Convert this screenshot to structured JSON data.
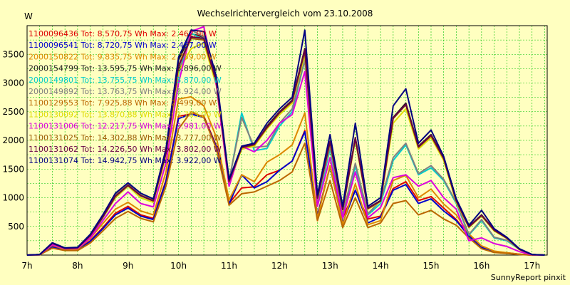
{
  "chart_data": {
    "type": "line",
    "title": "Wechselrichtervergleich vom 23.10.2008",
    "y_unit_label": "W",
    "xlabel": "",
    "ylabel": "",
    "x_ticks": [
      "7h",
      "8h",
      "9h",
      "10h",
      "11h",
      "12h",
      "13h",
      "14h",
      "15h",
      "16h",
      "17h"
    ],
    "y_ticks": [
      500,
      1000,
      1500,
      2000,
      2500,
      3000,
      3500
    ],
    "xlim": [
      7.0,
      17.3
    ],
    "ylim": [
      0,
      4000
    ],
    "grid": true,
    "legend_position": "top-left",
    "footer": "SunnyReport pinxit",
    "x": [
      7.0,
      7.25,
      7.5,
      7.75,
      8.0,
      8.25,
      8.5,
      8.75,
      9.0,
      9.25,
      9.5,
      9.75,
      10.0,
      10.25,
      10.5,
      10.75,
      11.0,
      11.25,
      11.5,
      11.75,
      12.0,
      12.25,
      12.5,
      12.75,
      13.0,
      13.25,
      13.5,
      13.75,
      14.0,
      14.25,
      14.5,
      14.75,
      15.0,
      15.25,
      15.5,
      15.75,
      16.0,
      16.25,
      16.5,
      16.75,
      17.0,
      17.25
    ],
    "series": [
      {
        "name": "1100096436 Tot: 8.570,75 Wh Max: 2.462,00 W",
        "color": "#dd0000",
        "values": [
          0,
          5,
          150,
          90,
          90,
          250,
          480,
          730,
          850,
          700,
          640,
          1300,
          2420,
          2460,
          2420,
          1900,
          900,
          1170,
          1190,
          1400,
          1480,
          1640,
          2170,
          690,
          1550,
          650,
          1130,
          630,
          680,
          1160,
          1280,
          950,
          1020,
          820,
          620,
          340,
          140,
          60,
          40,
          15,
          0,
          0
        ]
      },
      {
        "name": "1100096541 Tot: 8.720,75 Wh Max: 2.457,00 W",
        "color": "#0000cc",
        "values": [
          0,
          5,
          140,
          85,
          85,
          240,
          460,
          700,
          820,
          680,
          620,
          1280,
          2380,
          2457,
          2400,
          1880,
          890,
          1400,
          1170,
          1280,
          1480,
          1640,
          2150,
          680,
          1540,
          560,
          1130,
          560,
          660,
          1130,
          1230,
          900,
          980,
          770,
          600,
          330,
          130,
          55,
          35,
          15,
          0,
          0
        ]
      },
      {
        "name": "2000150822 Tot: 9.835,75 Wh Max: 2.759,00 W",
        "color": "#dd8800",
        "values": [
          0,
          8,
          170,
          100,
          100,
          290,
          550,
          800,
          920,
          770,
          700,
          1450,
          2720,
          2759,
          2600,
          2050,
          960,
          1400,
          1280,
          1620,
          1750,
          1920,
          2480,
          640,
          1560,
          530,
          1240,
          530,
          600,
          1300,
          1390,
          1000,
          1150,
          890,
          700,
          370,
          160,
          70,
          40,
          15,
          0,
          0
        ]
      },
      {
        "name": "2000154799 Tot: 13.595,75 Wh Max: 3.896,00 W",
        "color": "#202020",
        "values": [
          0,
          10,
          210,
          120,
          130,
          350,
          680,
          1050,
          1230,
          1050,
          950,
          1800,
          3400,
          3860,
          3800,
          3050,
          1300,
          1850,
          1900,
          2250,
          2500,
          2700,
          3600,
          1000,
          1980,
          800,
          2050,
          820,
          950,
          2400,
          2650,
          1900,
          2100,
          1700,
          950,
          500,
          700,
          440,
          300,
          100,
          10,
          0
        ]
      },
      {
        "name": "2000149801 Tot: 13.755,75 Wh Max: 3.870,00 W",
        "color": "#00cccc",
        "values": [
          0,
          10,
          200,
          120,
          130,
          330,
          650,
          1000,
          1200,
          1000,
          920,
          1750,
          3150,
          3870,
          3750,
          3000,
          1280,
          2480,
          1820,
          1860,
          2250,
          2500,
          3400,
          900,
          1850,
          700,
          1550,
          700,
          900,
          1650,
          1920,
          1400,
          1520,
          1300,
          900,
          350,
          600,
          300,
          250,
          100,
          10,
          0
        ]
      },
      {
        "name": "2000149892 Tot: 13.763,75 Wh Max: 3.924,00 W",
        "color": "#808080",
        "values": [
          0,
          10,
          210,
          120,
          130,
          340,
          670,
          1040,
          1250,
          1050,
          960,
          1800,
          3200,
          3924,
          3800,
          3050,
          1300,
          2400,
          1880,
          1900,
          2300,
          2550,
          3400,
          950,
          1900,
          720,
          1600,
          720,
          950,
          1700,
          1950,
          1420,
          1560,
          1320,
          920,
          360,
          620,
          310,
          260,
          110,
          10,
          0
        ]
      },
      {
        "name": "1100129553 Tot: 7.925,88 Wh Max: 2.499,00 W",
        "color": "#bb6600",
        "values": [
          0,
          5,
          120,
          80,
          80,
          210,
          420,
          640,
          760,
          640,
          580,
          1200,
          2200,
          2499,
          2400,
          1850,
          870,
          1070,
          1100,
          1200,
          1300,
          1450,
          1950,
          600,
          1300,
          480,
          1000,
          480,
          560,
          900,
          950,
          700,
          780,
          630,
          520,
          300,
          110,
          45,
          30,
          10,
          0,
          0
        ]
      },
      {
        "name": "1100130092 Tot: 13.870,88 Wh Max: 3.783,00 W",
        "color": "#dddd00",
        "values": [
          0,
          10,
          200,
          115,
          125,
          330,
          650,
          1000,
          1200,
          1000,
          920,
          1720,
          3200,
          3600,
          3700,
          2950,
          1250,
          1850,
          1900,
          2200,
          2450,
          2650,
          3500,
          980,
          1950,
          780,
          2000,
          800,
          930,
          2300,
          2550,
          1850,
          2050,
          1650,
          920,
          480,
          680,
          420,
          290,
          95,
          10,
          0
        ]
      },
      {
        "name": "1100131006 Tot: 12.217,75 Wh Max: 3.981,00 W",
        "color": "#dd00dd",
        "values": [
          0,
          8,
          180,
          110,
          115,
          300,
          600,
          900,
          1100,
          900,
          840,
          1600,
          3000,
          3900,
          3981,
          2950,
          1200,
          1900,
          1800,
          2000,
          2300,
          2450,
          3200,
          850,
          1700,
          650,
          1450,
          650,
          830,
          1350,
          1400,
          1200,
          1300,
          1000,
          800,
          250,
          300,
          200,
          150,
          60,
          5,
          0
        ]
      },
      {
        "name": "1100131025 Tot: 14.302,88 Wh Max: 3.777,00 W",
        "color": "#9a5a00",
        "values": [
          0,
          10,
          205,
          118,
          128,
          340,
          665,
          1030,
          1220,
          1040,
          950,
          1780,
          3300,
          3777,
          3750,
          3000,
          1280,
          1870,
          1920,
          2220,
          2480,
          2680,
          3550,
          990,
          1970,
          790,
          2030,
          810,
          940,
          2380,
          2620,
          1880,
          2080,
          1680,
          940,
          490,
          690,
          430,
          295,
          98,
          10,
          0
        ]
      },
      {
        "name": "1100131062 Tot: 14.226,50 Wh Max: 3.802,00 W",
        "color": "#660044",
        "values": [
          0,
          10,
          205,
          118,
          128,
          338,
          660,
          1025,
          1215,
          1035,
          945,
          1775,
          3300,
          3802,
          3780,
          3020,
          1290,
          1880,
          1930,
          2230,
          2490,
          2690,
          3580,
          995,
          1980,
          795,
          2040,
          815,
          945,
          2390,
          2630,
          1890,
          2090,
          1690,
          945,
          495,
          695,
          435,
          298,
          99,
          10,
          0
        ]
      },
      {
        "name": "1100131074 Tot: 14.942,75 Wh Max: 3.922,00 W",
        "color": "#000080",
        "values": [
          0,
          10,
          215,
          125,
          135,
          360,
          700,
          1080,
          1260,
          1080,
          980,
          1850,
          3450,
          3922,
          3900,
          3100,
          1320,
          1900,
          1950,
          2300,
          2550,
          2750,
          3922,
          1050,
          2100,
          850,
          2300,
          850,
          1000,
          2600,
          2900,
          1950,
          2180,
          1720,
          980,
          520,
          780,
          460,
          310,
          110,
          10,
          0
        ]
      }
    ]
  }
}
